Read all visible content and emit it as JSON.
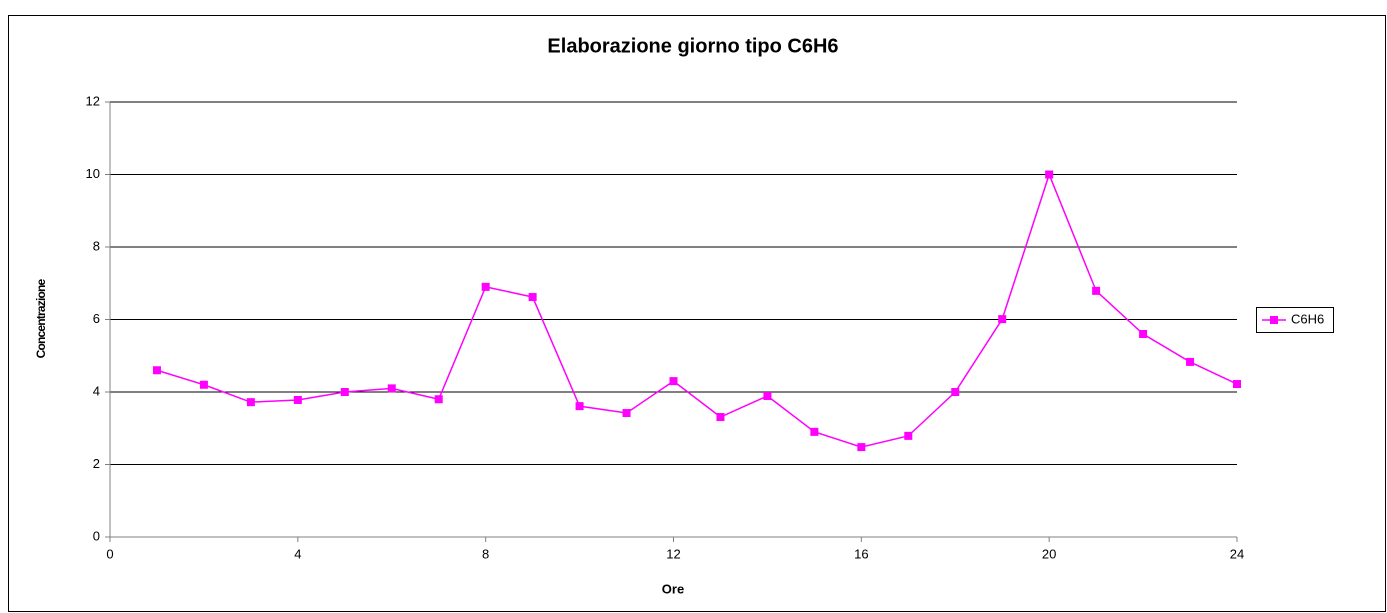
{
  "chart_data": {
    "type": "line",
    "title": "Elaborazione giorno tipo C6H6",
    "x_label": "Ore",
    "y_label": "Concentrazione",
    "x": [
      1,
      2,
      3,
      4,
      5,
      6,
      7,
      8,
      9,
      10,
      11,
      12,
      13,
      14,
      15,
      16,
      17,
      18,
      19,
      20,
      21,
      22,
      23,
      24
    ],
    "series": [
      {
        "name": "C6H6",
        "color": "#ff00ff",
        "values": [
          4.6,
          4.2,
          3.72,
          3.78,
          4.0,
          4.1,
          3.8,
          6.9,
          6.62,
          3.61,
          3.42,
          4.3,
          3.31,
          3.89,
          2.9,
          2.48,
          2.79,
          4.0,
          6.01,
          10.0,
          6.79,
          5.6,
          4.83,
          4.22
        ]
      }
    ],
    "xlim": [
      0,
      24
    ],
    "xticks": [
      0,
      4,
      8,
      12,
      16,
      20,
      24
    ],
    "ylim": [
      0,
      12
    ],
    "yticks": [
      0,
      2,
      4,
      6,
      8,
      10,
      12
    ],
    "grid": true,
    "legend": "right"
  }
}
